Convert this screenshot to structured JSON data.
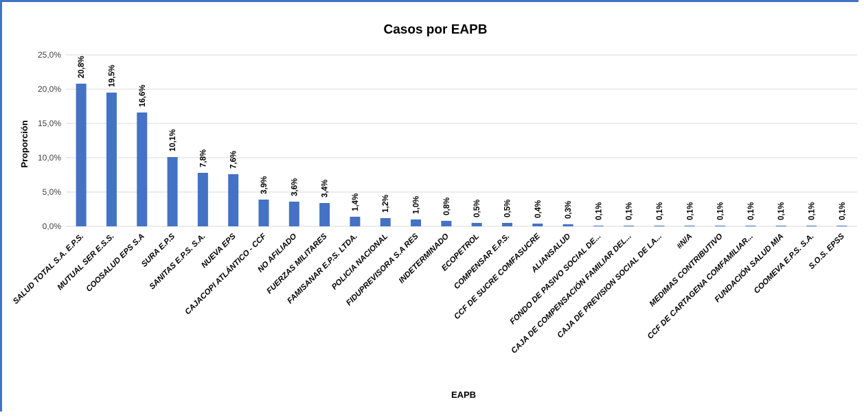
{
  "chart_data": {
    "type": "bar",
    "title": "Casos por EAPB",
    "xlabel": "EAPB",
    "ylabel": "Proporción",
    "ylim": [
      0,
      25
    ],
    "grid": true,
    "color": "#4472c4",
    "yticks": [
      "0,0%",
      "5,0%",
      "10,0%",
      "15,0%",
      "20,0%",
      "25,0%"
    ],
    "categories": [
      "SALUD TOTAL S.A. E.P.S.",
      "MUTUAL SER E.S.S.",
      "COOSALUD EPS S.A",
      "SURA E.P.S",
      "SANITAS E.P.S. S.A.",
      "NUEVA EPS",
      "CAJACOPI ATLÁNTICO - CCF",
      "NO AFILIADO",
      "FUERZAS MILITARES",
      "FAMISANAR E.P.S. LTDA.",
      "POLICIA NACIONAL",
      "FIDUPREVISORA S.A RES",
      "INDETERMINADO",
      "ECOPETROL",
      "COMPENSAR E.P.S.",
      "CCF DE SUCRE COMFASUCRE",
      "ALIANSALUD",
      "FONDO DE PASIVO SOCIAL DE...",
      "CAJA DE COMPENSACIÓN FAMILIAR DEL...",
      "CAJA DE PREVISION SOCIAL DE LA...",
      "#N/A",
      "MEDIMAS CONTRIBUTIVO",
      "CCF DE CARTAGENA COMFAMILIAR...",
      "FUNDACIÓN SALUD MIA",
      "COOMEVA E.P.S. S.A.",
      "S.O.S. EPSS"
    ],
    "values": [
      20.8,
      19.5,
      16.6,
      10.1,
      7.8,
      7.6,
      3.9,
      3.6,
      3.4,
      1.4,
      1.2,
      1.0,
      0.8,
      0.5,
      0.5,
      0.4,
      0.3,
      0.1,
      0.1,
      0.1,
      0.1,
      0.1,
      0.1,
      0.1,
      0.1,
      0.1
    ],
    "labels": [
      "20,8%",
      "19,5%",
      "16,6%",
      "10,1%",
      "7,8%",
      "7,6%",
      "3,9%",
      "3,6%",
      "3,4%",
      "1,4%",
      "1,2%",
      "1,0%",
      "0,8%",
      "0,5%",
      "0,5%",
      "0,4%",
      "0,3%",
      "0,1%",
      "0,1%",
      "0,1%",
      "0,1%",
      "0,1%",
      "0,1%",
      "0,1%",
      "0,1%",
      "0,1%"
    ]
  }
}
